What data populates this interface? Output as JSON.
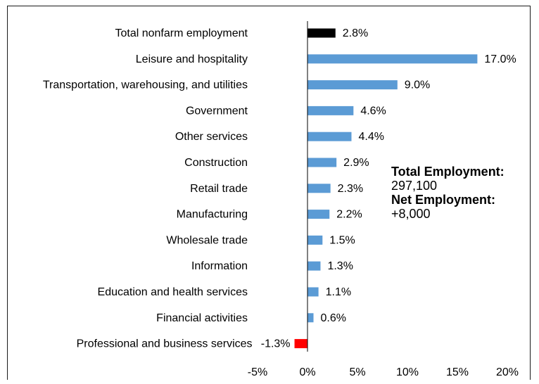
{
  "chart_data": {
    "type": "bar",
    "orientation": "horizontal",
    "categories": [
      "Total nonfarm employment",
      "Leisure and hospitality",
      "Transportation, warehousing, and utilities",
      "Government",
      "Other services",
      "Construction",
      "Retail trade",
      "Manufacturing",
      "Wholesale trade",
      "Information",
      "Education and health services",
      "Financial activities",
      "Professional and business services"
    ],
    "values": [
      2.8,
      17.0,
      9.0,
      4.6,
      4.4,
      2.9,
      2.3,
      2.2,
      1.5,
      1.3,
      1.1,
      0.6,
      -1.3
    ],
    "value_labels": [
      "2.8%",
      "17.0%",
      "9.0%",
      "4.6%",
      "4.4%",
      "2.9%",
      "2.3%",
      "2.2%",
      "1.5%",
      "1.3%",
      "1.1%",
      "0.6%",
      "-1.3%"
    ],
    "bar_colors": [
      "#000000",
      "#5b9bd5",
      "#5b9bd5",
      "#5b9bd5",
      "#5b9bd5",
      "#5b9bd5",
      "#5b9bd5",
      "#5b9bd5",
      "#5b9bd5",
      "#5b9bd5",
      "#5b9bd5",
      "#5b9bd5",
      "#ff0000"
    ],
    "xlim": [
      -5,
      20
    ],
    "x_ticks": [
      -5,
      0,
      5,
      10,
      15,
      20
    ],
    "x_tick_labels": [
      "-5%",
      "0%",
      "5%",
      "10%",
      "15%",
      "20%"
    ],
    "grid": false,
    "title": "",
    "xlabel": "",
    "ylabel": ""
  },
  "annotation": {
    "total_label": "Total Employment:",
    "total_value": "297,100",
    "net_label": "Net Employment:",
    "net_value": "+8,000"
  }
}
